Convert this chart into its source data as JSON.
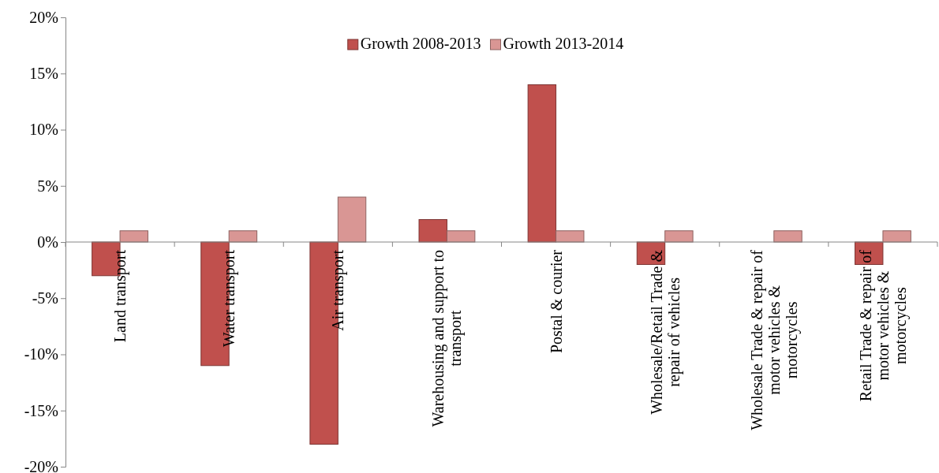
{
  "chart_data": {
    "type": "bar",
    "categories": [
      "Land transport",
      "Water transport",
      "Air transport",
      "Warehousing and support to transport",
      "Postal & courier",
      "Wholesale/Retail Trade & repair of vehicles",
      "Wholesale Trade & repair of motor vehicles & motorcycles",
      "Retail Trade & repair of motor vehicles & motorcycles"
    ],
    "series": [
      {
        "name": "Growth 2008-2013",
        "color": "#c0504d",
        "values": [
          -3,
          -11,
          -18,
          2,
          14,
          -2,
          0,
          -2
        ]
      },
      {
        "name": "Growth 2013-2014",
        "color": "#d99694",
        "values": [
          1,
          1,
          4,
          1,
          1,
          1,
          1,
          1
        ]
      }
    ],
    "ylim": [
      -20,
      20
    ],
    "yticks": [
      {
        "value": -20,
        "label": "-20%"
      },
      {
        "value": -15,
        "label": "-15%"
      },
      {
        "value": -10,
        "label": "-10%"
      },
      {
        "value": -5,
        "label": "-5%"
      },
      {
        "value": 0,
        "label": "0%"
      },
      {
        "value": 5,
        "label": "5%"
      },
      {
        "value": 10,
        "label": "10%"
      },
      {
        "value": 15,
        "label": "15%"
      },
      {
        "value": 20,
        "label": "20%"
      }
    ],
    "grid": false,
    "legend": "top"
  }
}
